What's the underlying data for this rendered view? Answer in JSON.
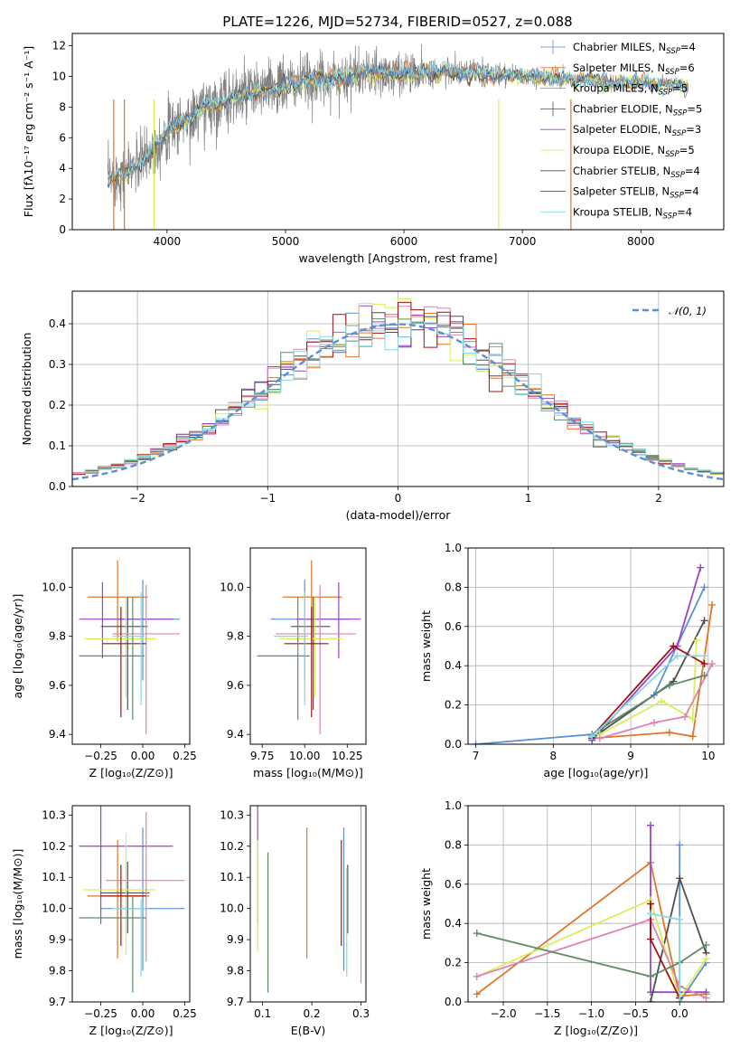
{
  "title": "PLATE=1226, MJD=52734, FIBERID=0527, z=0.088",
  "colors": [
    "#5b8fd6",
    "#e0762a",
    "#9a45c8",
    "#4f4f4f",
    "#d8ee5a",
    "#dc82b4",
    "#a40f14",
    "#5e8c68",
    "#86d9df"
  ],
  "chart_data": [
    {
      "id": "spectrum",
      "type": "line",
      "xlabel": "wavelength [Angstrom, rest frame]",
      "ylabel": "Flux [fλ10⁻¹⁷ erg cm⁻² s⁻¹ A⁻¹]",
      "xlim": [
        3200,
        8700
      ],
      "ylim": [
        0,
        12.8
      ],
      "xticks": [
        4000,
        5000,
        6000,
        7000,
        8000
      ],
      "yticks": [
        0,
        2,
        4,
        6,
        8,
        10,
        12
      ],
      "data_color": "#808080",
      "data_profile": {
        "x": [
          3500,
          3600,
          3700,
          3800,
          3900,
          4000,
          4100,
          4200,
          4300,
          4500,
          4700,
          5000,
          5300,
          5600,
          6000,
          6400,
          6800,
          7200,
          7600,
          8000,
          8400
        ],
        "y": [
          3.3,
          3.6,
          3.9,
          4.6,
          5.4,
          6.4,
          7.0,
          7.2,
          7.9,
          8.5,
          8.9,
          9.4,
          9.8,
          10.1,
          10.2,
          10.3,
          10.1,
          9.9,
          9.7,
          9.6,
          9.4
        ]
      },
      "noise_amplitude": [
        [
          3200,
          1.6
        ],
        [
          4400,
          1.8
        ],
        [
          5800,
          1.3
        ],
        [
          6800,
          0.6
        ],
        [
          8700,
          0.3
        ]
      ],
      "legend": [
        {
          "label": "Chabrier MILES, N",
          "sub": "SSP",
          "tail": "=4",
          "color": "#5b8fd6"
        },
        {
          "label": "Salpeter MILES, N",
          "sub": "SSP",
          "tail": "=6",
          "color": "#e0762a"
        },
        {
          "label": "Kroupa MILES, N",
          "sub": "SSP",
          "tail": "=5",
          "color": "#e0762a"
        },
        {
          "label": "Chabrier ELODIE, N",
          "sub": "SSP",
          "tail": "=5",
          "color": "#4f4f4f"
        },
        {
          "label": "Salpeter ELODIE, N",
          "sub": "SSP",
          "tail": "=3",
          "color": "#9a45c8"
        },
        {
          "label": "Kroupa ELODIE, N",
          "sub": "SSP",
          "tail": "=5",
          "color": "#d8ee5a"
        },
        {
          "label": "Chabrier STELIB, N",
          "sub": "SSP",
          "tail": "=4",
          "color": "#4f4f4f"
        },
        {
          "label": "Salpeter STELIB, N",
          "sub": "SSP",
          "tail": "=4",
          "color": "#a40f14"
        },
        {
          "label": "Kroupa STELIB, N",
          "sub": "SSP",
          "tail": "=4",
          "color": "#86d9df"
        }
      ]
    },
    {
      "id": "residuals",
      "type": "step",
      "xlabel": "(data-model)/error",
      "ylabel": "Normed distribution",
      "xlim": [
        -2.5,
        2.5
      ],
      "ylim": [
        0,
        0.48
      ],
      "xticks": [
        -2,
        -1,
        0,
        1,
        2
      ],
      "yticks": [
        0.0,
        0.1,
        0.2,
        0.3,
        0.4
      ],
      "grid": true,
      "bin_width": 0.1,
      "legend": {
        "label": "𝒩(0, 1)",
        "position": "top-right"
      }
    },
    {
      "id": "age_vs_Z",
      "type": "errorbar",
      "xlabel": "Z [log₁₀(Z/Z⊙)]",
      "ylabel": "age  [log₁₀(age/yr)]",
      "xlim": [
        -0.42,
        0.28
      ],
      "ylim": [
        9.36,
        10.16
      ],
      "xticks": [
        -0.25,
        0.0,
        0.25
      ],
      "yticks": [
        9.4,
        9.6,
        9.8,
        10.0
      ],
      "points": [
        {
          "c": 0,
          "x": 0.0,
          "y": 9.87,
          "xe": [
            -0.25,
            0.22
          ],
          "ye": [
            9.62,
            10.03
          ]
        },
        {
          "c": 1,
          "x": -0.15,
          "y": 9.96,
          "xe": [
            -0.33,
            0.03
          ],
          "ye": [
            9.78,
            10.11
          ]
        },
        {
          "c": 2,
          "x": -0.24,
          "y": 9.87,
          "xe": [
            -0.38,
            0.18
          ],
          "ye": [
            9.71,
            10.02
          ]
        },
        {
          "c": 3,
          "x": -0.09,
          "y": 9.84,
          "xe": [
            -0.25,
            0.03
          ],
          "ye": [
            9.5,
            9.96
          ]
        },
        {
          "c": 4,
          "x": -0.1,
          "y": 9.79,
          "xe": [
            -0.35,
            0.08
          ],
          "ye": [
            9.55,
            9.96
          ]
        },
        {
          "c": 5,
          "x": 0.02,
          "y": 9.81,
          "xe": [
            -0.18,
            0.22
          ],
          "ye": [
            9.4,
            10.01
          ]
        },
        {
          "c": 6,
          "x": -0.13,
          "y": 9.77,
          "xe": [
            -0.24,
            0.02
          ],
          "ye": [
            9.47,
            9.92
          ]
        },
        {
          "c": 7,
          "x": -0.06,
          "y": 9.72,
          "xe": [
            -0.38,
            0.01
          ],
          "ye": [
            9.46,
            9.96
          ]
        },
        {
          "c": 8,
          "x": -0.01,
          "y": 9.8,
          "xe": [
            -0.18,
            0.01
          ],
          "ye": [
            9.52,
            9.98
          ]
        }
      ]
    },
    {
      "id": "age_vs_mass",
      "type": "errorbar",
      "xlabel": "mass [log₁₀(M/M⊙)]",
      "ylabel": "",
      "xlim": [
        9.68,
        10.36
      ],
      "ylim": [
        9.36,
        10.16
      ],
      "xticks": [
        9.75,
        10.0,
        10.25
      ],
      "yticks": [
        9.4,
        9.6,
        9.8,
        10.0
      ],
      "points": [
        {
          "c": 0,
          "x": 10.0,
          "y": 9.87,
          "xe": [
            9.8,
            10.26
          ],
          "ye": [
            9.62,
            10.03
          ]
        },
        {
          "c": 1,
          "x": 10.04,
          "y": 9.96,
          "xe": [
            9.87,
            10.22
          ],
          "ye": [
            9.78,
            10.11
          ]
        },
        {
          "c": 2,
          "x": 10.2,
          "y": 9.87,
          "xe": [
            9.95,
            10.33
          ],
          "ye": [
            9.71,
            10.02
          ]
        },
        {
          "c": 3,
          "x": 10.05,
          "y": 9.84,
          "xe": [
            9.92,
            10.15
          ],
          "ye": [
            9.5,
            9.96
          ]
        },
        {
          "c": 4,
          "x": 10.06,
          "y": 9.79,
          "xe": [
            9.85,
            10.22
          ],
          "ye": [
            9.55,
            9.96
          ]
        },
        {
          "c": 5,
          "x": 10.09,
          "y": 9.81,
          "xe": [
            9.83,
            10.3
          ],
          "ye": [
            9.4,
            10.01
          ]
        },
        {
          "c": 6,
          "x": 10.04,
          "y": 9.77,
          "xe": [
            9.88,
            10.14
          ],
          "ye": [
            9.47,
            9.92
          ]
        },
        {
          "c": 7,
          "x": 9.96,
          "y": 9.72,
          "xe": [
            9.72,
            10.03
          ],
          "ye": [
            9.46,
            9.96
          ]
        },
        {
          "c": 8,
          "x": 10.0,
          "y": 9.8,
          "xe": [
            9.82,
            10.02
          ],
          "ye": [
            9.52,
            9.98
          ]
        }
      ]
    },
    {
      "id": "weight_vs_age",
      "type": "line",
      "xlabel": "age  [log₁₀(age/yr)]",
      "ylabel": "mass weight",
      "xlim": [
        6.9,
        10.2
      ],
      "ylim": [
        0,
        1.0
      ],
      "xticks": [
        7,
        8,
        9,
        10
      ],
      "yticks": [
        0.0,
        0.2,
        0.4,
        0.6,
        0.8,
        1.0
      ],
      "grid": true,
      "series": [
        {
          "c": 0,
          "x": [
            7.0,
            8.5,
            9.3,
            9.95
          ],
          "y": [
            0.0,
            0.05,
            0.25,
            0.8
          ]
        },
        {
          "c": 1,
          "x": [
            8.5,
            9.5,
            9.8,
            10.05
          ],
          "y": [
            0.03,
            0.06,
            0.04,
            0.71
          ]
        },
        {
          "c": 2,
          "x": [
            8.5,
            9.6,
            9.9
          ],
          "y": [
            0.02,
            0.5,
            0.9
          ]
        },
        {
          "c": 3,
          "x": [
            8.5,
            9.55,
            9.95
          ],
          "y": [
            0.03,
            0.32,
            0.63
          ]
        },
        {
          "c": 4,
          "x": [
            8.6,
            9.4,
            9.8,
            9.85
          ],
          "y": [
            0.05,
            0.22,
            0.13,
            0.53
          ]
        },
        {
          "c": 5,
          "x": [
            8.6,
            9.3,
            9.7,
            10.05
          ],
          "y": [
            0.03,
            0.11,
            0.14,
            0.41
          ]
        },
        {
          "c": 6,
          "x": [
            8.5,
            9.55,
            9.95
          ],
          "y": [
            0.04,
            0.5,
            0.41
          ]
        },
        {
          "c": 7,
          "x": [
            8.5,
            9.5,
            9.95
          ],
          "y": [
            0.05,
            0.3,
            0.35
          ]
        },
        {
          "c": 8,
          "x": [
            8.5,
            9.6,
            9.95
          ],
          "y": [
            0.04,
            0.45,
            0.45
          ]
        }
      ]
    },
    {
      "id": "mass_vs_Z",
      "type": "errorbar",
      "xlabel": "Z [log₁₀(Z/Z⊙)]",
      "ylabel": "mass [log₁₀(M/M⊙)]",
      "xlim": [
        -0.42,
        0.28
      ],
      "ylim": [
        9.7,
        10.33
      ],
      "xticks": [
        -0.25,
        0.0,
        0.25
      ],
      "yticks": [
        9.7,
        9.8,
        9.9,
        10.0,
        10.1,
        10.2,
        10.3
      ],
      "points": [
        {
          "c": 0,
          "x": 0.0,
          "y": 10.0,
          "xe": [
            -0.25,
            0.25
          ],
          "ye": [
            9.8,
            10.26
          ]
        },
        {
          "c": 1,
          "x": -0.15,
          "y": 10.04,
          "xe": [
            -0.33,
            0.04
          ],
          "ye": [
            9.84,
            10.22
          ]
        },
        {
          "c": 2,
          "x": -0.25,
          "y": 10.2,
          "xe": [
            -0.38,
            0.18
          ],
          "ye": [
            9.95,
            10.33
          ]
        },
        {
          "c": 3,
          "x": -0.09,
          "y": 10.05,
          "xe": [
            -0.25,
            0.04
          ],
          "ye": [
            9.92,
            10.15
          ]
        },
        {
          "c": 4,
          "x": -0.1,
          "y": 10.06,
          "xe": [
            -0.36,
            0.08
          ],
          "ye": [
            9.85,
            10.24
          ]
        },
        {
          "c": 5,
          "x": 0.02,
          "y": 10.09,
          "xe": [
            -0.22,
            0.25
          ],
          "ye": [
            9.83,
            10.31
          ]
        },
        {
          "c": 6,
          "x": -0.13,
          "y": 10.04,
          "xe": [
            -0.25,
            0.02
          ],
          "ye": [
            9.88,
            10.14
          ]
        },
        {
          "c": 7,
          "x": -0.06,
          "y": 9.97,
          "xe": [
            -0.38,
            0.02
          ],
          "ye": [
            9.73,
            10.04
          ]
        },
        {
          "c": 8,
          "x": -0.01,
          "y": 10.0,
          "xe": [
            -0.18,
            0.02
          ],
          "ye": [
            9.78,
            10.03
          ]
        }
      ]
    },
    {
      "id": "mass_vs_EBV",
      "type": "errorbar",
      "xlabel": "E(B-V)",
      "ylabel": "",
      "xlim": [
        0.075,
        0.31
      ],
      "ylim": [
        9.7,
        10.33
      ],
      "xticks": [
        0.1,
        0.2,
        0.3
      ],
      "yticks": [
        9.7,
        9.8,
        9.9,
        10.0,
        10.1,
        10.2,
        10.3
      ],
      "points": [
        {
          "c": 0,
          "x": 0.265,
          "y": 10.0,
          "ye": [
            9.8,
            10.26
          ]
        },
        {
          "c": 1,
          "x": 0.19,
          "y": 10.04,
          "ye": [
            9.84,
            10.26
          ]
        },
        {
          "c": 2,
          "x": 0.09,
          "y": 10.2,
          "ye": [
            9.95,
            10.34
          ]
        },
        {
          "c": 3,
          "x": 0.273,
          "y": 10.05,
          "ye": [
            9.92,
            10.14
          ]
        },
        {
          "c": 4,
          "x": 0.09,
          "y": 10.06,
          "ye": [
            9.86,
            10.22
          ]
        },
        {
          "c": 5,
          "x": 0.3,
          "y": 10.09,
          "ye": [
            9.76,
            10.33
          ]
        },
        {
          "c": 6,
          "x": 0.26,
          "y": 10.04,
          "ye": [
            9.88,
            10.22
          ]
        },
        {
          "c": 7,
          "x": 0.111,
          "y": 9.97,
          "ye": [
            9.73,
            10.18
          ]
        },
        {
          "c": 8,
          "x": 0.271,
          "y": 10.0,
          "ye": [
            9.78,
            10.13
          ]
        }
      ]
    },
    {
      "id": "weight_vs_Z",
      "type": "line",
      "xlabel": "Z [log₁₀(Z/Z⊙)]",
      "ylabel": "mass weight",
      "xlim": [
        -2.4,
        0.5
      ],
      "ylim": [
        0,
        1.0
      ],
      "xticks": [
        -2.0,
        -1.5,
        -1.0,
        -0.5,
        0.0
      ],
      "yticks": [
        0.0,
        0.2,
        0.4,
        0.6,
        0.8,
        1.0
      ],
      "grid": true,
      "series": [
        {
          "c": 0,
          "x": [
            0.0,
            0.0,
            0.3
          ],
          "y": [
            0.8,
            0.0,
            0.2
          ]
        },
        {
          "c": 1,
          "x": [
            -2.3,
            -0.33,
            0.0,
            0.3
          ],
          "y": [
            0.04,
            0.71,
            0.03,
            0.04
          ]
        },
        {
          "c": 2,
          "x": [
            -0.33,
            -0.33,
            0.3
          ],
          "y": [
            0.9,
            0.05,
            0.05
          ]
        },
        {
          "c": 3,
          "x": [
            -0.33,
            0.0,
            0.3
          ],
          "y": [
            0.0,
            0.63,
            0.25
          ]
        },
        {
          "c": 4,
          "x": [
            -2.3,
            -0.33,
            0.0,
            0.3
          ],
          "y": [
            0.13,
            0.52,
            0.02,
            0.22
          ]
        },
        {
          "c": 5,
          "x": [
            -2.3,
            -0.33,
            0.0,
            0.3
          ],
          "y": [
            0.13,
            0.42,
            0.08,
            0.02
          ]
        },
        {
          "c": 6,
          "x": [
            -0.33,
            -0.33,
            0.0
          ],
          "y": [
            0.5,
            0.32,
            0.02
          ]
        },
        {
          "c": 7,
          "x": [
            -2.3,
            -0.33,
            0.0,
            0.3
          ],
          "y": [
            0.35,
            0.13,
            0.2,
            0.29
          ]
        },
        {
          "c": 8,
          "x": [
            -0.33,
            0.0,
            0.0
          ],
          "y": [
            0.45,
            0.42,
            0.0
          ]
        }
      ]
    }
  ]
}
